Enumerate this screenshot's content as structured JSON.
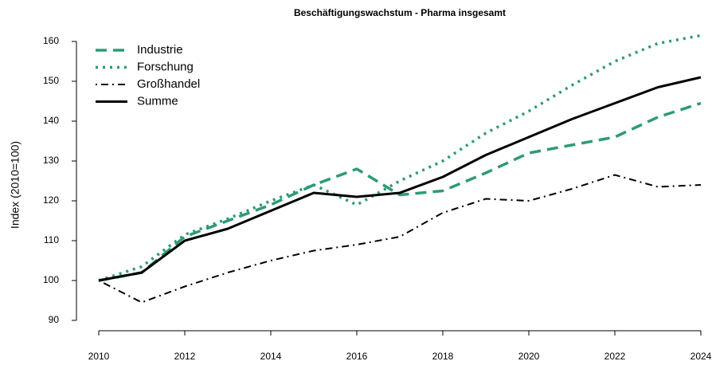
{
  "chart_data": {
    "type": "line",
    "title": "Beschäftigungswachstum - Pharma insgesamt",
    "y_label": "Index (2010=100)",
    "x": [
      2010,
      2011,
      2012,
      2013,
      2014,
      2015,
      2016,
      2017,
      2018,
      2019,
      2020,
      2021,
      2022,
      2023,
      2024
    ],
    "series": [
      {
        "name": "Industrie",
        "color": "#2e9a78",
        "style": "dashed",
        "values": [
          100,
          102,
          111,
          115,
          119,
          124,
          128,
          121.5,
          122.5,
          127,
          132,
          134,
          136,
          141,
          144.5
        ]
      },
      {
        "name": "Forschung",
        "color": "#2e9a78",
        "style": "dotted",
        "values": [
          100,
          103.5,
          111.5,
          115.5,
          120,
          124,
          119,
          125,
          130,
          137,
          142.5,
          149,
          155,
          159.5,
          161.5
        ]
      },
      {
        "name": "Großhandel",
        "color": "#000000",
        "style": "dotdash",
        "values": [
          100,
          94.5,
          98.5,
          102,
          105,
          107.5,
          109,
          111,
          117,
          120.5,
          120,
          123,
          126.5,
          123.5,
          124
        ]
      },
      {
        "name": "Summe",
        "color": "#000000",
        "style": "solid",
        "values": [
          100,
          102,
          110,
          113,
          117.5,
          122,
          121,
          122,
          126,
          131.5,
          136,
          140.5,
          144.5,
          148.5,
          151
        ]
      }
    ],
    "xlim": [
      2010,
      2024
    ],
    "xticks": [
      2010,
      2012,
      2014,
      2016,
      2018,
      2020,
      2022,
      2024
    ],
    "ylim": [
      88,
      162
    ],
    "yticks": [
      90,
      100,
      110,
      120,
      130,
      140,
      150,
      160
    ],
    "legend": "top-left"
  }
}
